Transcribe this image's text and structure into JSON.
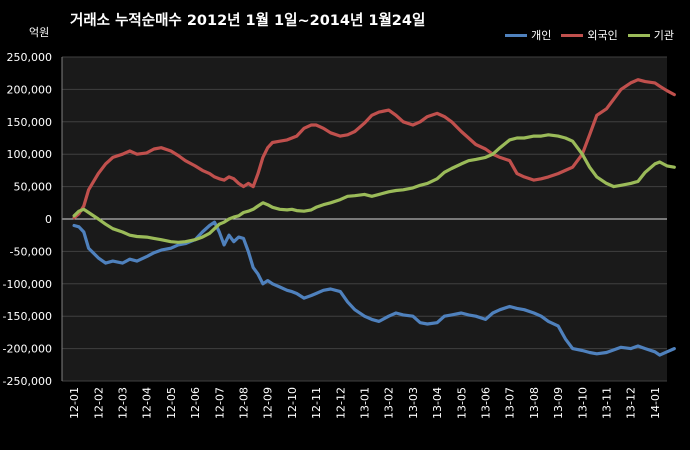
{
  "title": "거래소  누적순매수 2012년 1월 1일~2014년 1월24일",
  "unit_label": "억원",
  "colors": {
    "individual": "#4f81bd",
    "foreign": "#c0504d",
    "institution": "#9bbb59",
    "plot_bg": "#1a1a1a",
    "grid": "#404040"
  },
  "chart_data": {
    "type": "line",
    "title": "거래소  누적순매수 2012년 1월 1일~2014년 1월24일",
    "ylabel": "억원",
    "xlabel": "",
    "ylim": [
      -250000,
      250000
    ],
    "yticks": [
      250000,
      200000,
      150000,
      100000,
      50000,
      0,
      -50000,
      -100000,
      -150000,
      -200000,
      -250000
    ],
    "ytick_labels": [
      "250,000",
      "200,000",
      "150,000",
      "100,000",
      "50,000",
      "0",
      "-50,000",
      "-100,000",
      "-150,000",
      "-200,000",
      "-250,000"
    ],
    "categories": [
      "12-01",
      "12-02",
      "12-03",
      "12-04",
      "12-05",
      "12-06",
      "12-07",
      "12-08",
      "12-09",
      "12-10",
      "12-11",
      "12-12",
      "13-01",
      "13-02",
      "13-03",
      "13-04",
      "13-05",
      "13-06",
      "13-07",
      "13-08",
      "13-09",
      "13-10",
      "13-11",
      "13-12",
      "14-01"
    ],
    "legend_position": "top-right",
    "grid": true,
    "series": [
      {
        "name": "개인",
        "color": "#4f81bd",
        "x": [
          0,
          0.2,
          0.4,
          0.6,
          1,
          1.3,
          1.6,
          2,
          2.3,
          2.6,
          3,
          3.3,
          3.6,
          4,
          4.3,
          4.6,
          5,
          5.3,
          5.6,
          5.8,
          6,
          6.2,
          6.4,
          6.6,
          6.8,
          7,
          7.2,
          7.4,
          7.6,
          7.8,
          8,
          8.2,
          8.5,
          8.8,
          9,
          9.2,
          9.5,
          9.8,
          10,
          10.3,
          10.6,
          11,
          11.3,
          11.6,
          12,
          12.3,
          12.6,
          13,
          13.3,
          13.6,
          14,
          14.3,
          14.6,
          15,
          15.3,
          15.6,
          16,
          16.3,
          16.6,
          17,
          17.3,
          17.6,
          18,
          18.3,
          18.6,
          19,
          19.3,
          19.6,
          20,
          20.3,
          20.6,
          21,
          21.3,
          21.6,
          22,
          22.3,
          22.6,
          23,
          23.3,
          23.6,
          24,
          24.2,
          24.5,
          24.8
        ],
        "y": [
          -10000,
          -12000,
          -20000,
          -45000,
          -60000,
          -68000,
          -65000,
          -68000,
          -62000,
          -65000,
          -58000,
          -52000,
          -48000,
          -45000,
          -40000,
          -38000,
          -32000,
          -20000,
          -10000,
          -5000,
          -20000,
          -40000,
          -25000,
          -35000,
          -28000,
          -30000,
          -50000,
          -75000,
          -85000,
          -100000,
          -95000,
          -100000,
          -105000,
          -110000,
          -112000,
          -115000,
          -122000,
          -118000,
          -115000,
          -110000,
          -108000,
          -112000,
          -128000,
          -140000,
          -150000,
          -155000,
          -158000,
          -150000,
          -145000,
          -148000,
          -150000,
          -160000,
          -162000,
          -160000,
          -150000,
          -148000,
          -145000,
          -148000,
          -150000,
          -155000,
          -145000,
          -140000,
          -135000,
          -138000,
          -140000,
          -145000,
          -150000,
          -158000,
          -165000,
          -185000,
          -200000,
          -203000,
          -206000,
          -208000,
          -206000,
          -202000,
          -198000,
          -200000,
          -196000,
          -200000,
          -205000,
          -210000,
          -205000,
          -200000
        ]
      },
      {
        "name": "외국인",
        "color": "#c0504d",
        "x": [
          0,
          0.2,
          0.4,
          0.6,
          1,
          1.3,
          1.6,
          2,
          2.3,
          2.6,
          3,
          3.3,
          3.6,
          4,
          4.3,
          4.6,
          5,
          5.3,
          5.6,
          5.8,
          6,
          6.2,
          6.4,
          6.6,
          6.8,
          7,
          7.2,
          7.4,
          7.6,
          7.8,
          8,
          8.2,
          8.5,
          8.8,
          9,
          9.2,
          9.5,
          9.8,
          10,
          10.3,
          10.6,
          11,
          11.3,
          11.6,
          12,
          12.3,
          12.6,
          13,
          13.3,
          13.6,
          14,
          14.3,
          14.6,
          15,
          15.3,
          15.6,
          16,
          16.3,
          16.6,
          17,
          17.3,
          17.6,
          18,
          18.3,
          18.6,
          19,
          19.3,
          19.6,
          20,
          20.3,
          20.6,
          21,
          21.3,
          21.6,
          22,
          22.3,
          22.6,
          23,
          23.3,
          23.6,
          24,
          24.2,
          24.5,
          24.8
        ],
        "y": [
          2000,
          8000,
          20000,
          45000,
          70000,
          85000,
          95000,
          100000,
          105000,
          100000,
          102000,
          108000,
          110000,
          105000,
          98000,
          90000,
          82000,
          75000,
          70000,
          65000,
          62000,
          60000,
          65000,
          62000,
          55000,
          50000,
          55000,
          50000,
          70000,
          95000,
          110000,
          118000,
          120000,
          122000,
          125000,
          128000,
          140000,
          145000,
          145000,
          140000,
          133000,
          128000,
          130000,
          135000,
          148000,
          160000,
          165000,
          168000,
          160000,
          150000,
          145000,
          150000,
          158000,
          163000,
          158000,
          150000,
          135000,
          125000,
          115000,
          108000,
          100000,
          95000,
          90000,
          70000,
          65000,
          60000,
          62000,
          65000,
          70000,
          75000,
          80000,
          100000,
          130000,
          160000,
          170000,
          185000,
          200000,
          210000,
          215000,
          212000,
          210000,
          205000,
          198000,
          192000
        ]
      },
      {
        "name": "기관",
        "color": "#9bbb59",
        "x": [
          0,
          0.2,
          0.4,
          0.6,
          1,
          1.3,
          1.6,
          2,
          2.3,
          2.6,
          3,
          3.3,
          3.6,
          4,
          4.3,
          4.6,
          5,
          5.3,
          5.6,
          5.8,
          6,
          6.2,
          6.4,
          6.6,
          6.8,
          7,
          7.2,
          7.4,
          7.6,
          7.8,
          8,
          8.2,
          8.5,
          8.8,
          9,
          9.2,
          9.5,
          9.8,
          10,
          10.3,
          10.6,
          11,
          11.3,
          11.6,
          12,
          12.3,
          12.6,
          13,
          13.3,
          13.6,
          14,
          14.3,
          14.6,
          15,
          15.3,
          15.6,
          16,
          16.3,
          16.6,
          17,
          17.3,
          17.6,
          18,
          18.3,
          18.6,
          19,
          19.3,
          19.6,
          20,
          20.3,
          20.6,
          21,
          21.3,
          21.6,
          22,
          22.3,
          22.6,
          23,
          23.3,
          23.6,
          24,
          24.2,
          24.5,
          24.8
        ],
        "y": [
          5000,
          12000,
          15000,
          10000,
          0,
          -8000,
          -15000,
          -20000,
          -25000,
          -27000,
          -28000,
          -30000,
          -32000,
          -35000,
          -36000,
          -35000,
          -32000,
          -28000,
          -22000,
          -15000,
          -8000,
          -5000,
          0,
          3000,
          5000,
          10000,
          12000,
          15000,
          20000,
          25000,
          22000,
          18000,
          15000,
          14000,
          15000,
          13000,
          12000,
          14000,
          18000,
          22000,
          25000,
          30000,
          35000,
          36000,
          38000,
          35000,
          38000,
          42000,
          44000,
          45000,
          48000,
          52000,
          55000,
          62000,
          72000,
          78000,
          85000,
          90000,
          92000,
          95000,
          100000,
          110000,
          122000,
          125000,
          125000,
          128000,
          128000,
          130000,
          128000,
          125000,
          120000,
          100000,
          80000,
          65000,
          55000,
          50000,
          52000,
          55000,
          58000,
          72000,
          85000,
          88000,
          82000,
          80000
        ]
      }
    ]
  }
}
